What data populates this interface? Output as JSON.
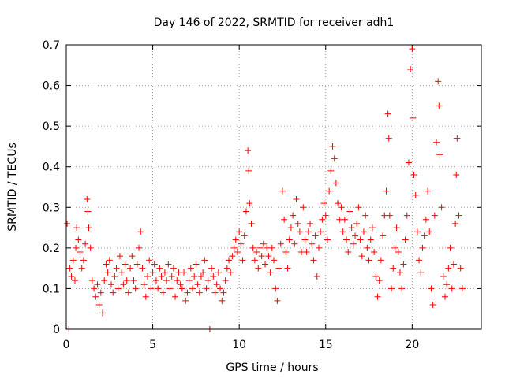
{
  "chart_data": {
    "type": "scatter",
    "title": "Day 146 of 2022, SRMTID for receiver adh1",
    "xlabel": "GPS time / hours",
    "ylabel": "SRMTID / TECUs",
    "xlim": [
      0,
      24
    ],
    "ylim": [
      0,
      0.7
    ],
    "xticks": [
      0,
      5,
      10,
      15,
      20
    ],
    "yticks": [
      0,
      0.1,
      0.2,
      0.3,
      0.4,
      0.5,
      0.6,
      0.7
    ],
    "xtick_labels": [
      "0",
      "5",
      "10",
      "15",
      "20"
    ],
    "ytick_labels": [
      "0",
      "0.1",
      "0.2",
      "0.3",
      "0.4",
      "0.5",
      "0.6",
      "0.7"
    ],
    "grid": true,
    "marker": "+",
    "color": "#ff0000",
    "series": [
      {
        "name": "SRMTID",
        "points": [
          [
            0.05,
            0.26
          ],
          [
            0.15,
            0.0
          ],
          [
            0.2,
            0.15
          ],
          [
            0.3,
            0.13
          ],
          [
            0.4,
            0.17
          ],
          [
            0.5,
            0.12
          ],
          [
            0.55,
            0.2
          ],
          [
            0.6,
            0.25
          ],
          [
            0.7,
            0.22
          ],
          [
            0.8,
            0.19
          ],
          [
            0.9,
            0.15
          ],
          [
            1.0,
            0.17
          ],
          [
            1.1,
            0.21
          ],
          [
            1.2,
            0.32
          ],
          [
            1.25,
            0.29
          ],
          [
            1.3,
            0.25
          ],
          [
            1.4,
            0.2
          ],
          [
            1.5,
            0.12
          ],
          [
            1.6,
            0.1
          ],
          [
            1.7,
            0.08
          ],
          [
            1.8,
            0.11
          ],
          [
            1.9,
            0.06
          ],
          [
            2.0,
            0.09
          ],
          [
            2.1,
            0.04
          ],
          [
            2.2,
            0.12
          ],
          [
            2.3,
            0.16
          ],
          [
            2.4,
            0.14
          ],
          [
            2.5,
            0.17
          ],
          [
            2.6,
            0.11
          ],
          [
            2.7,
            0.09
          ],
          [
            2.8,
            0.13
          ],
          [
            2.9,
            0.15
          ],
          [
            3.0,
            0.1
          ],
          [
            3.1,
            0.18
          ],
          [
            3.2,
            0.14
          ],
          [
            3.3,
            0.11
          ],
          [
            3.4,
            0.16
          ],
          [
            3.5,
            0.12
          ],
          [
            3.6,
            0.09
          ],
          [
            3.7,
            0.15
          ],
          [
            3.8,
            0.18
          ],
          [
            3.9,
            0.12
          ],
          [
            4.0,
            0.1
          ],
          [
            4.1,
            0.16
          ],
          [
            4.2,
            0.2
          ],
          [
            4.3,
            0.24
          ],
          [
            4.4,
            0.15
          ],
          [
            4.5,
            0.11
          ],
          [
            4.6,
            0.08
          ],
          [
            4.7,
            0.13
          ],
          [
            4.8,
            0.17
          ],
          [
            4.9,
            0.1
          ],
          [
            5.0,
            0.14
          ],
          [
            5.1,
            0.16
          ],
          [
            5.2,
            0.12
          ],
          [
            5.3,
            0.1
          ],
          [
            5.4,
            0.15
          ],
          [
            5.5,
            0.13
          ],
          [
            5.6,
            0.09
          ],
          [
            5.7,
            0.14
          ],
          [
            5.8,
            0.12
          ],
          [
            5.9,
            0.16
          ],
          [
            6.0,
            0.1
          ],
          [
            6.1,
            0.13
          ],
          [
            6.2,
            0.15
          ],
          [
            6.3,
            0.08
          ],
          [
            6.4,
            0.12
          ],
          [
            6.5,
            0.14
          ],
          [
            6.6,
            0.11
          ],
          [
            6.7,
            0.1
          ],
          [
            6.8,
            0.14
          ],
          [
            6.9,
            0.07
          ],
          [
            7.0,
            0.09
          ],
          [
            7.1,
            0.12
          ],
          [
            7.2,
            0.15
          ],
          [
            7.3,
            0.1
          ],
          [
            7.4,
            0.13
          ],
          [
            7.5,
            0.16
          ],
          [
            7.6,
            0.11
          ],
          [
            7.7,
            0.09
          ],
          [
            7.8,
            0.13
          ],
          [
            7.9,
            0.14
          ],
          [
            8.0,
            0.17
          ],
          [
            8.1,
            0.1
          ],
          [
            8.2,
            0.12
          ],
          [
            8.3,
            0.0
          ],
          [
            8.4,
            0.15
          ],
          [
            8.5,
            0.13
          ],
          [
            8.6,
            0.09
          ],
          [
            8.7,
            0.11
          ],
          [
            8.8,
            0.14
          ],
          [
            8.9,
            0.1
          ],
          [
            9.0,
            0.07
          ],
          [
            9.1,
            0.09
          ],
          [
            9.2,
            0.12
          ],
          [
            9.3,
            0.15
          ],
          [
            9.4,
            0.17
          ],
          [
            9.5,
            0.14
          ],
          [
            9.6,
            0.18
          ],
          [
            9.7,
            0.2
          ],
          [
            9.8,
            0.22
          ],
          [
            9.9,
            0.19
          ],
          [
            10.0,
            0.24
          ],
          [
            10.1,
            0.21
          ],
          [
            10.2,
            0.17
          ],
          [
            10.3,
            0.23
          ],
          [
            10.4,
            0.29
          ],
          [
            10.5,
            0.44
          ],
          [
            10.55,
            0.39
          ],
          [
            10.6,
            0.31
          ],
          [
            10.7,
            0.26
          ],
          [
            10.8,
            0.2
          ],
          [
            10.9,
            0.17
          ],
          [
            11.0,
            0.19
          ],
          [
            11.1,
            0.15
          ],
          [
            11.2,
            0.2
          ],
          [
            11.3,
            0.18
          ],
          [
            11.4,
            0.21
          ],
          [
            11.5,
            0.16
          ],
          [
            11.6,
            0.2
          ],
          [
            11.7,
            0.18
          ],
          [
            11.8,
            0.14
          ],
          [
            11.9,
            0.2
          ],
          [
            12.0,
            0.17
          ],
          [
            12.1,
            0.1
          ],
          [
            12.2,
            0.07
          ],
          [
            12.3,
            0.15
          ],
          [
            12.4,
            0.21
          ],
          [
            12.5,
            0.34
          ],
          [
            12.6,
            0.27
          ],
          [
            12.7,
            0.19
          ],
          [
            12.8,
            0.15
          ],
          [
            12.9,
            0.22
          ],
          [
            13.0,
            0.25
          ],
          [
            13.1,
            0.28
          ],
          [
            13.2,
            0.21
          ],
          [
            13.3,
            0.32
          ],
          [
            13.4,
            0.26
          ],
          [
            13.5,
            0.24
          ],
          [
            13.6,
            0.19
          ],
          [
            13.7,
            0.3
          ],
          [
            13.8,
            0.22
          ],
          [
            13.9,
            0.19
          ],
          [
            14.0,
            0.24
          ],
          [
            14.1,
            0.26
          ],
          [
            14.2,
            0.21
          ],
          [
            14.3,
            0.17
          ],
          [
            14.4,
            0.23
          ],
          [
            14.5,
            0.13
          ],
          [
            14.6,
            0.2
          ],
          [
            14.7,
            0.24
          ],
          [
            14.8,
            0.27
          ],
          [
            14.9,
            0.31
          ],
          [
            15.0,
            0.28
          ],
          [
            15.1,
            0.22
          ],
          [
            15.2,
            0.34
          ],
          [
            15.3,
            0.39
          ],
          [
            15.4,
            0.45
          ],
          [
            15.5,
            0.42
          ],
          [
            15.6,
            0.36
          ],
          [
            15.7,
            0.31
          ],
          [
            15.8,
            0.27
          ],
          [
            15.9,
            0.3
          ],
          [
            16.0,
            0.24
          ],
          [
            16.1,
            0.27
          ],
          [
            16.2,
            0.22
          ],
          [
            16.3,
            0.19
          ],
          [
            16.4,
            0.29
          ],
          [
            16.5,
            0.25
          ],
          [
            16.6,
            0.21
          ],
          [
            16.7,
            0.23
          ],
          [
            16.8,
            0.26
          ],
          [
            16.9,
            0.3
          ],
          [
            17.0,
            0.22
          ],
          [
            17.1,
            0.18
          ],
          [
            17.2,
            0.24
          ],
          [
            17.3,
            0.28
          ],
          [
            17.4,
            0.2
          ],
          [
            17.5,
            0.17
          ],
          [
            17.6,
            0.22
          ],
          [
            17.7,
            0.25
          ],
          [
            17.8,
            0.19
          ],
          [
            17.9,
            0.13
          ],
          [
            18.0,
            0.08
          ],
          [
            18.1,
            0.12
          ],
          [
            18.2,
            0.17
          ],
          [
            18.3,
            0.23
          ],
          [
            18.4,
            0.28
          ],
          [
            18.5,
            0.34
          ],
          [
            18.6,
            0.53
          ],
          [
            18.65,
            0.47
          ],
          [
            18.7,
            0.28
          ],
          [
            18.8,
            0.1
          ],
          [
            18.9,
            0.15
          ],
          [
            19.0,
            0.2
          ],
          [
            19.1,
            0.25
          ],
          [
            19.2,
            0.19
          ],
          [
            19.3,
            0.14
          ],
          [
            19.4,
            0.1
          ],
          [
            19.5,
            0.16
          ],
          [
            19.6,
            0.22
          ],
          [
            19.7,
            0.28
          ],
          [
            19.8,
            0.41
          ],
          [
            19.9,
            0.64
          ],
          [
            20.0,
            0.69
          ],
          [
            20.05,
            0.52
          ],
          [
            20.1,
            0.38
          ],
          [
            20.2,
            0.33
          ],
          [
            20.3,
            0.24
          ],
          [
            20.4,
            0.17
          ],
          [
            20.5,
            0.14
          ],
          [
            20.6,
            0.2
          ],
          [
            20.7,
            0.23
          ],
          [
            20.8,
            0.27
          ],
          [
            20.9,
            0.34
          ],
          [
            21.0,
            0.24
          ],
          [
            21.1,
            0.1
          ],
          [
            21.2,
            0.06
          ],
          [
            21.3,
            0.28
          ],
          [
            21.4,
            0.46
          ],
          [
            21.5,
            0.61
          ],
          [
            21.55,
            0.55
          ],
          [
            21.6,
            0.43
          ],
          [
            21.7,
            0.3
          ],
          [
            21.8,
            0.13
          ],
          [
            21.9,
            0.08
          ],
          [
            22.0,
            0.11
          ],
          [
            22.1,
            0.15
          ],
          [
            22.2,
            0.2
          ],
          [
            22.3,
            0.1
          ],
          [
            22.4,
            0.16
          ],
          [
            22.5,
            0.26
          ],
          [
            22.55,
            0.38
          ],
          [
            22.6,
            0.47
          ],
          [
            22.7,
            0.28
          ],
          [
            22.8,
            0.15
          ],
          [
            22.9,
            0.1
          ]
        ]
      }
    ]
  }
}
